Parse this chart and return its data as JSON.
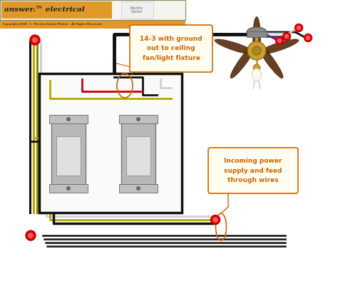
{
  "bg_color": "#e8e8e8",
  "orange_text_color": "#cc6600",
  "wire_black": "#111111",
  "wire_red": "#cc0000",
  "wire_white": "#d0d0d0",
  "wire_green": "#4a7a20",
  "wire_yellow": "#b8a800",
  "wire_blue": "#2244aa",
  "connector_color": "#cc0000",
  "box_color": "#111111",
  "label1": "14-3 with ground\nout to ceiling\nfan/light fixture",
  "label2": "Incoming power\nsupply and feed\nthrough wires",
  "copyright": "Copyright 2008  ©  Electric Doctor Photos - All Rights Reserved",
  "brand": "answer.™ electrical"
}
